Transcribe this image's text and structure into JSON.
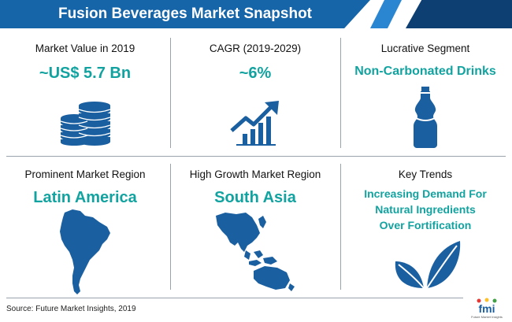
{
  "header": {
    "title": "Fusion Beverages Market Snapshot"
  },
  "cells": {
    "market_value": {
      "label": "Market Value in 2019",
      "value": "~US$ 5.7 Bn",
      "icon": "coins-stack-icon"
    },
    "cagr": {
      "label": "CAGR (2019-2029)",
      "value": "~6%",
      "icon": "growth-chart-icon"
    },
    "segment": {
      "label": "Lucrative Segment",
      "value": "Non-Carbonated Drinks",
      "icon": "bottle-icon"
    },
    "prominent_region": {
      "label": "Prominent Market Region",
      "value": "Latin America",
      "icon": "south-america-map-icon"
    },
    "growth_region": {
      "label": "High Growth Market Region",
      "value": "South Asia",
      "icon": "asia-map-icon"
    },
    "trends": {
      "label": "Key Trends",
      "value_lines": [
        "Increasing Demand For",
        "Natural Ingredients",
        "Over Fortification"
      ],
      "icon": "leaf-icon"
    }
  },
  "footer": {
    "source": "Source: Future Market Insights, 2019",
    "logo_text": "fmi",
    "logo_subtext": "Future Market Insights"
  },
  "colors": {
    "header": "#1565a8",
    "header_dark": "#0d3f73",
    "value": "#12a3a0",
    "icon": "#1a5fa0"
  }
}
